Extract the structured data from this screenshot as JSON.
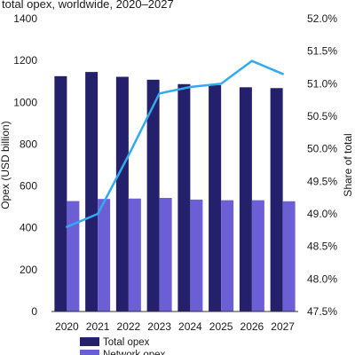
{
  "chart_data": {
    "type": "bar",
    "title": "total opex, worldwide, 2020–2027",
    "categories": [
      "2020",
      "2021",
      "2022",
      "2023",
      "2024",
      "2025",
      "2026",
      "2027"
    ],
    "series": [
      {
        "name": "Total opex",
        "type": "bar",
        "axis": "left",
        "color": "#24206b",
        "values": [
          1125,
          1145,
          1122,
          1108,
          1087,
          1082,
          1072,
          1068
        ]
      },
      {
        "name": "Network opex",
        "type": "bar",
        "axis": "left",
        "color": "#6c5fd6",
        "values": [
          528,
          538,
          540,
          543,
          535,
          532,
          532,
          527
        ]
      },
      {
        "name": "",
        "type": "line",
        "axis": "right",
        "color": "#33aaee",
        "values": [
          48.8,
          49.0,
          49.9,
          50.85,
          50.95,
          51.0,
          51.35,
          51.15
        ]
      }
    ],
    "ylabel": "Opex (USD billion)",
    "ylabel_right": "Share of total",
    "ylim": [
      0,
      1400
    ],
    "yticks": [
      "0",
      "200",
      "400",
      "600",
      "800",
      "1000",
      "1200",
      "1400"
    ],
    "ylim_right": [
      47.5,
      52.0
    ],
    "yticks_right": [
      "47.5%",
      "48.0%",
      "48.5%",
      "49.0%",
      "49.5%",
      "50.0%",
      "50.5%",
      "51.0%",
      "51.5%",
      "52.0%"
    ],
    "grid": false,
    "legend": {
      "placement": "bottom-left",
      "entries": [
        "Total opex",
        "Network opex"
      ]
    }
  }
}
